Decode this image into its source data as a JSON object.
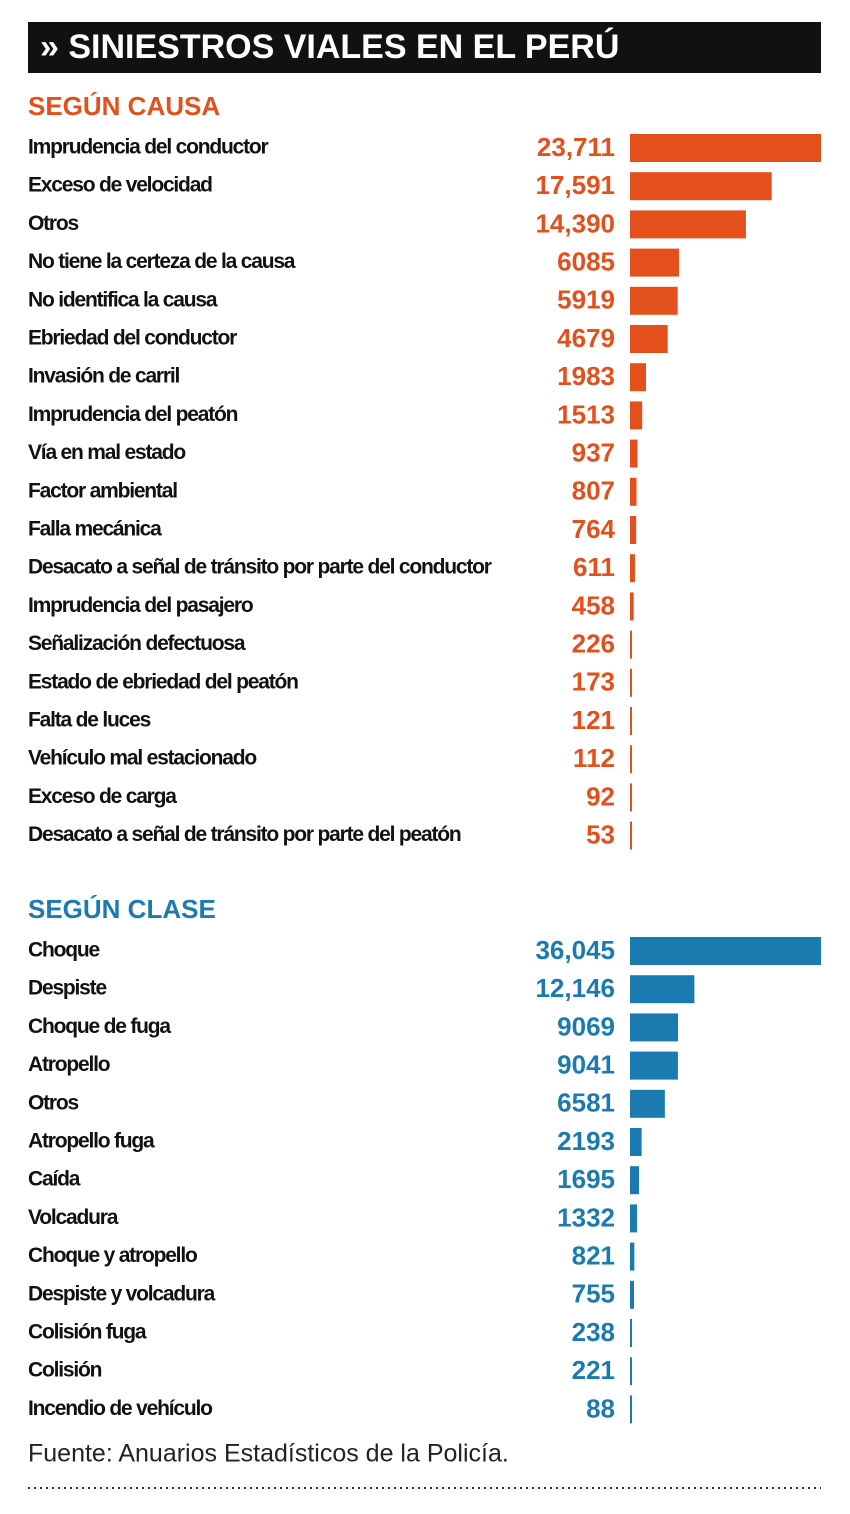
{
  "title": "» SINIESTROS VIALES EN EL PERÚ",
  "source": "Fuente: Anuarios Estadísticos de la Policía.",
  "chart_data": [
    {
      "type": "bar",
      "orientation": "horizontal",
      "title": "SEGÚN CAUSA",
      "color": "#e4501b",
      "categories": [
        "Imprudencia del conductor",
        "Exceso de velocidad",
        "Otros",
        "No tiene la certeza de la causa",
        "No identifica la causa",
        "Ebriedad del conductor",
        "Invasión de carril",
        "Imprudencia del peatón",
        "Vía en mal estado",
        "Factor ambiental",
        "Falla mecánica",
        "Desacato a señal de tránsito por parte del conductor",
        "Imprudencia del pasajero",
        "Señalización defectuosa",
        "Estado de ebriedad del peatón",
        "Falta de luces",
        "Vehículo mal estacionado",
        "Exceso de carga",
        "Desacato a señal de tránsito por parte del peatón"
      ],
      "values": [
        23711,
        17591,
        14390,
        6085,
        5919,
        4679,
        1983,
        1513,
        937,
        807,
        764,
        611,
        458,
        226,
        173,
        121,
        112,
        92,
        53
      ],
      "value_labels": [
        "23,711",
        "17,591",
        "14,390",
        "6085",
        "5919",
        "4679",
        "1983",
        "1513",
        "937",
        "807",
        "764",
        "611",
        "458",
        "226",
        "173",
        "121",
        "112",
        "92",
        "53"
      ]
    },
    {
      "type": "bar",
      "orientation": "horizontal",
      "title": "SEGÚN CLASE",
      "color": "#1b7bb0",
      "categories": [
        "Choque",
        "Despiste",
        "Choque de fuga",
        "Atropello",
        "Otros",
        "Atropello fuga",
        "Caída",
        "Volcadura",
        "Choque y atropello",
        "Despiste y volcadura",
        "Colisión fuga",
        "Colisión",
        "Incendio de vehículo"
      ],
      "values": [
        36045,
        12146,
        9069,
        9041,
        6581,
        2193,
        1695,
        1332,
        821,
        755,
        238,
        221,
        88
      ],
      "value_labels": [
        "36,045",
        "12,146",
        "9069",
        "9041",
        "6581",
        "2193",
        "1695",
        "1332",
        "821",
        "755",
        "238",
        "221",
        "88"
      ]
    }
  ]
}
